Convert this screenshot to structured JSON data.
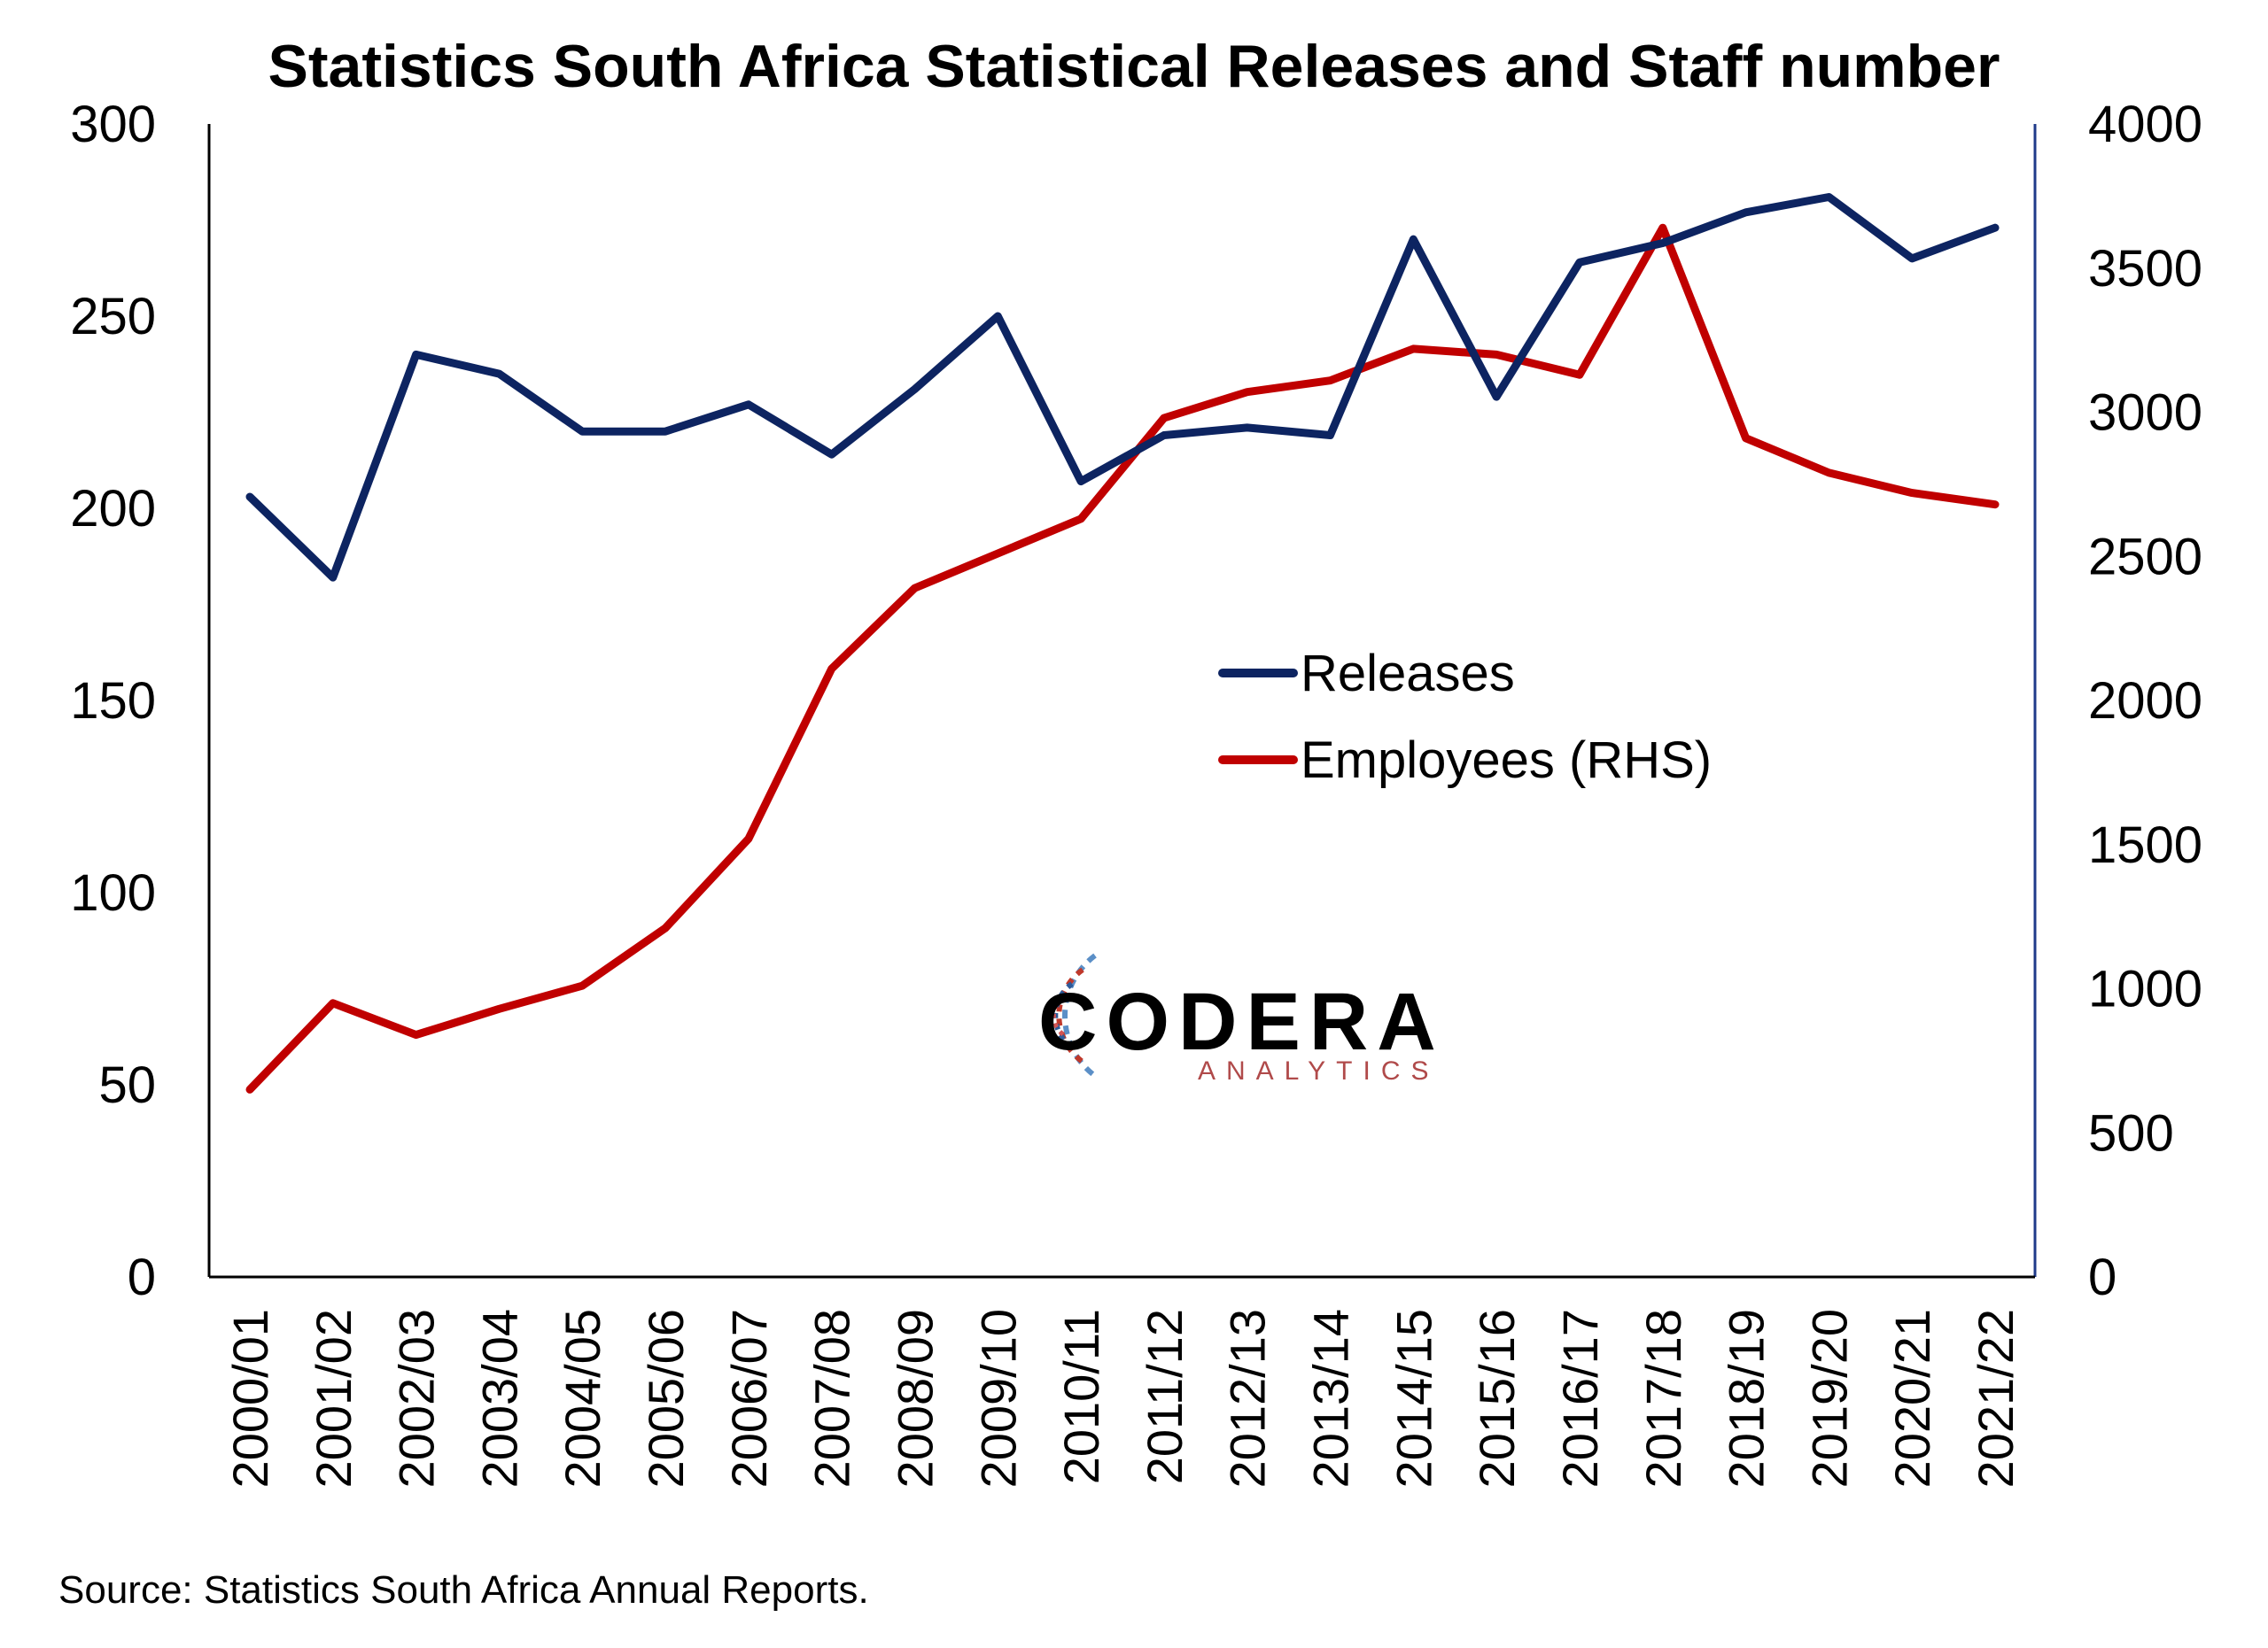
{
  "chart_data": {
    "type": "line",
    "title": "Statistics South Africa Statistical Releases and Staff number",
    "source": "Source: Statistics South Africa Annual Reports.",
    "categories": [
      "2000/01",
      "2001/02",
      "2002/03",
      "2003/04",
      "2004/05",
      "2005/06",
      "2006/07",
      "2007/08",
      "2008/09",
      "2009/10",
      "2010/11",
      "2011/12",
      "2012/13",
      "2013/14",
      "2014/15",
      "2015/16",
      "2016/17",
      "2017/18",
      "2018/19",
      "2019/20",
      "2020/21",
      "2021/22"
    ],
    "series": [
      {
        "name": "Releases",
        "axis": "left",
        "color": "#0d2461",
        "values": [
          203,
          182,
          240,
          235,
          220,
          220,
          227,
          214,
          231,
          250,
          207,
          219,
          221,
          219,
          270,
          229,
          264,
          269,
          277,
          281,
          265,
          273
        ]
      },
      {
        "name": "Employees (RHS)",
        "axis": "right",
        "color": "#c00000",
        "values": [
          650,
          950,
          840,
          930,
          1010,
          1210,
          1520,
          2110,
          2390,
          2510,
          2630,
          2980,
          3070,
          3110,
          3220,
          3200,
          3130,
          3640,
          2910,
          2790,
          2720,
          2680
        ]
      }
    ],
    "y_left": {
      "range": [
        0,
        300
      ],
      "ticks": [
        0,
        50,
        100,
        150,
        200,
        250,
        300
      ]
    },
    "y_right": {
      "range": [
        0,
        4000
      ],
      "ticks": [
        0,
        500,
        1000,
        1500,
        2000,
        2500,
        3000,
        3500,
        4000
      ]
    },
    "grid": false,
    "legend_position": "center-right"
  },
  "logo": {
    "main": "CODERA",
    "sub": "ANALYTICS"
  }
}
